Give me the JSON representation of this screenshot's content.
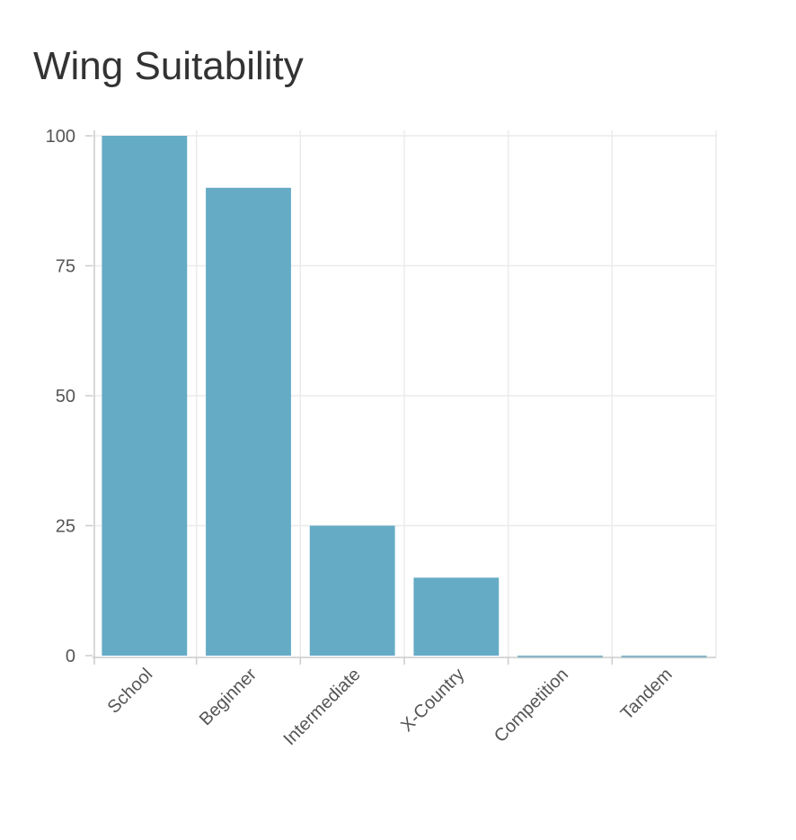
{
  "title": "Wing Suitability",
  "colors": {
    "bar": "#65abc6",
    "grid": "#ebebeb",
    "axis": "#cccccc",
    "text": "#555555",
    "title": "#333333"
  },
  "chart_data": {
    "type": "bar",
    "title": "Wing Suitability",
    "xlabel": "",
    "ylabel": "",
    "categories": [
      "School",
      "Beginner",
      "Intermediate",
      "X-Country",
      "Competition",
      "Tandem"
    ],
    "values": [
      100,
      90,
      25,
      15,
      0,
      0
    ],
    "ylim": [
      0,
      100
    ],
    "yticks": [
      0,
      25,
      50,
      75,
      100
    ],
    "grid": true,
    "legend": "none"
  }
}
